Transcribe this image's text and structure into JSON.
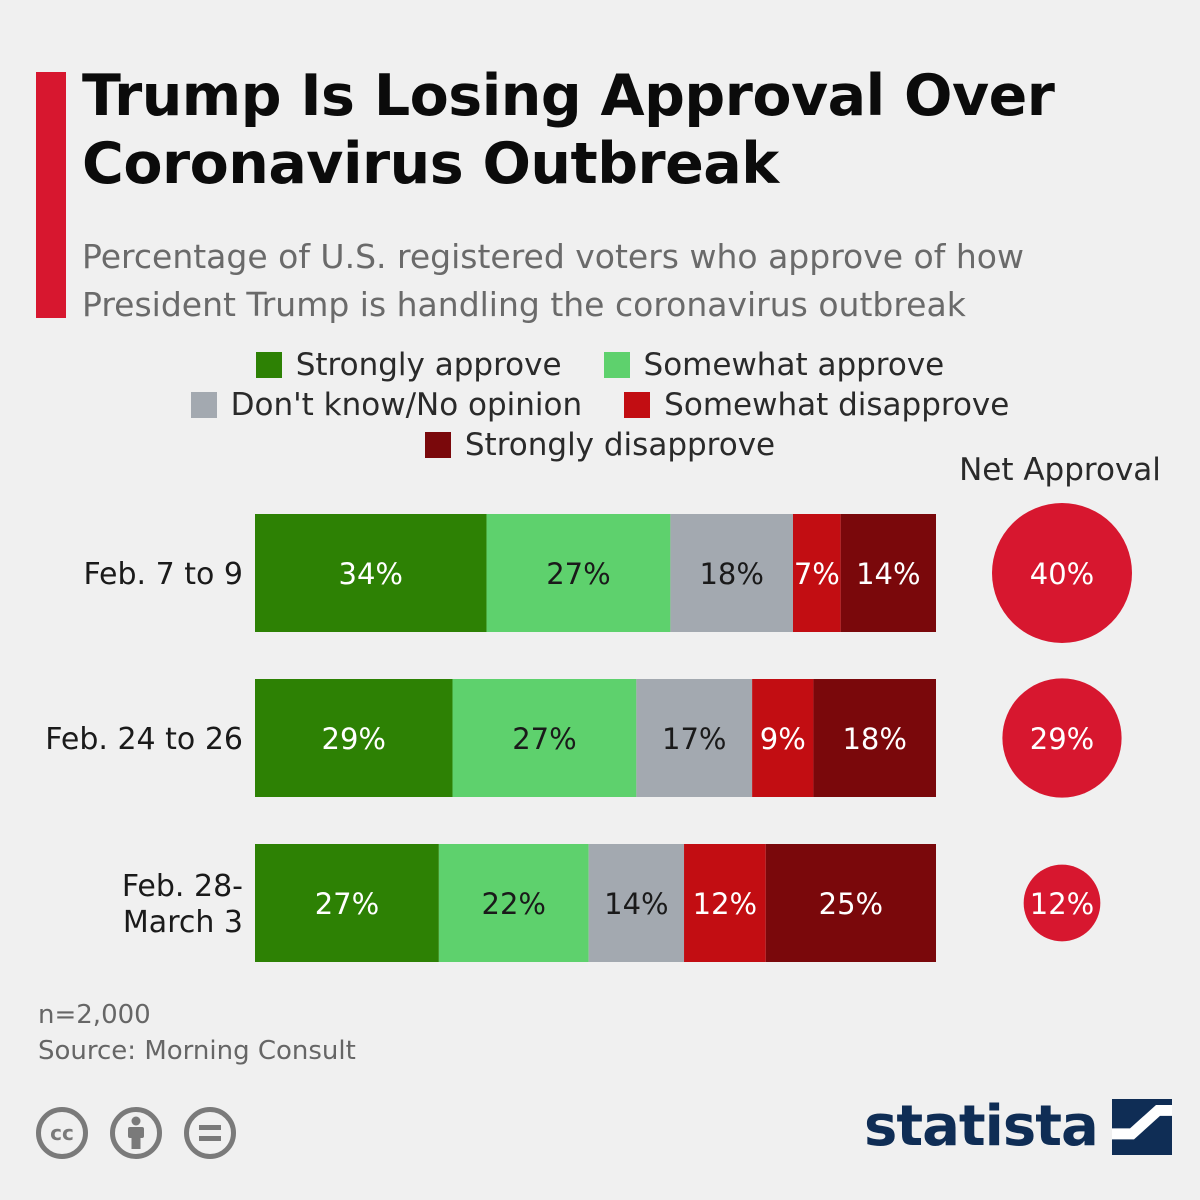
{
  "header": {
    "title_line1": "Trump Is Losing Approval Over",
    "title_line2": "Coronavirus Outbreak",
    "subtitle_line1": "Percentage of U.S. registered voters who approve of how",
    "subtitle_line2": "President Trump is handling the coronavirus outbreak",
    "accent_color": "#d7172f"
  },
  "legend": {
    "row1": [
      {
        "label": "Strongly approve",
        "color": "#2d8104"
      },
      {
        "label": "Somewhat approve",
        "color": "#5ed16d"
      }
    ],
    "row2": [
      {
        "label": "Don't know/No opinion",
        "color": "#a3a9b0"
      },
      {
        "label": "Somewhat disapprove",
        "color": "#c20d12"
      }
    ],
    "row3": [
      {
        "label": "Strongly disapprove",
        "color": "#7a080b"
      }
    ]
  },
  "net_header": "Net Approval",
  "chart_data": {
    "type": "bar",
    "orientation": "horizontal",
    "stacked": true,
    "categories": [
      [
        "Feb. 7 to 9"
      ],
      [
        "Feb. 24 to 26"
      ],
      [
        "Feb. 28-",
        "March 3"
      ]
    ],
    "series": [
      {
        "name": "Strongly approve",
        "color": "#2d8104",
        "values": [
          34,
          29,
          27
        ],
        "labels": [
          "34%",
          "29%",
          "27%"
        ]
      },
      {
        "name": "Somewhat approve",
        "color": "#5ed16d",
        "values": [
          27,
          27,
          22
        ],
        "labels": [
          "27%",
          "27%",
          "22%"
        ]
      },
      {
        "name": "Don't know/No opinion",
        "color": "#a3a9b0",
        "values": [
          18,
          17,
          14
        ],
        "labels": [
          "18%",
          "17%",
          "14%"
        ]
      },
      {
        "name": "Somewhat disapprove",
        "color": "#c20d12",
        "values": [
          7,
          9,
          12
        ],
        "labels": [
          "7%",
          "9%",
          "12%"
        ]
      },
      {
        "name": "Strongly disapprove",
        "color": "#7a080b",
        "values": [
          14,
          18,
          25
        ],
        "labels": [
          "14%",
          "18%",
          "25%"
        ]
      }
    ],
    "net_approval": {
      "values": [
        40,
        29,
        12
      ],
      "labels": [
        "40%",
        "29%",
        "12%"
      ],
      "color": "#d7172f"
    },
    "label_colors": {
      "Strongly approve": "#ffffff",
      "Somewhat approve": "#1a1a1a",
      "Don't know/No opinion": "#1a1a1a",
      "Somewhat disapprove": "#ffffff",
      "Strongly disapprove": "#ffffff"
    }
  },
  "footer": {
    "sample": "n=2,000",
    "source": "Source: Morning Consult",
    "license_icons": [
      "cc-icon",
      "attribution-icon",
      "no-derivatives-icon"
    ],
    "brand": "statista",
    "brand_color": "#0f2d55"
  }
}
